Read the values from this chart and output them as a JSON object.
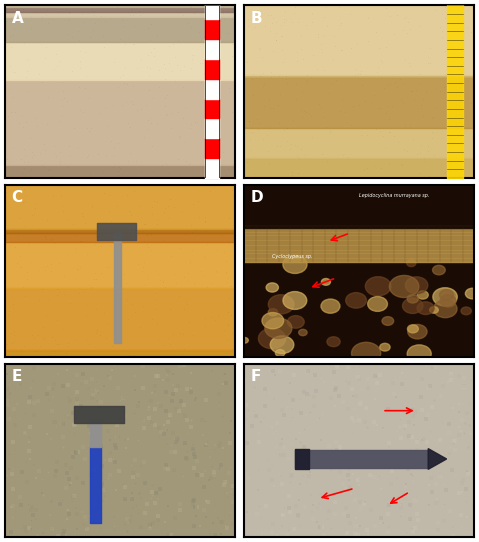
{
  "figsize": [
    4.79,
    5.42
  ],
  "dpi": 100,
  "nrows": 3,
  "ncols": 2,
  "labels": [
    "A",
    "B",
    "C",
    "D",
    "E",
    "F"
  ],
  "label_color": "white",
  "label_fontsize": 11,
  "label_fontweight": "bold",
  "outer_border_color": "black",
  "outer_border_lw": 1.5,
  "background_color": "white",
  "hspace": 0.04,
  "wspace": 0.04
}
